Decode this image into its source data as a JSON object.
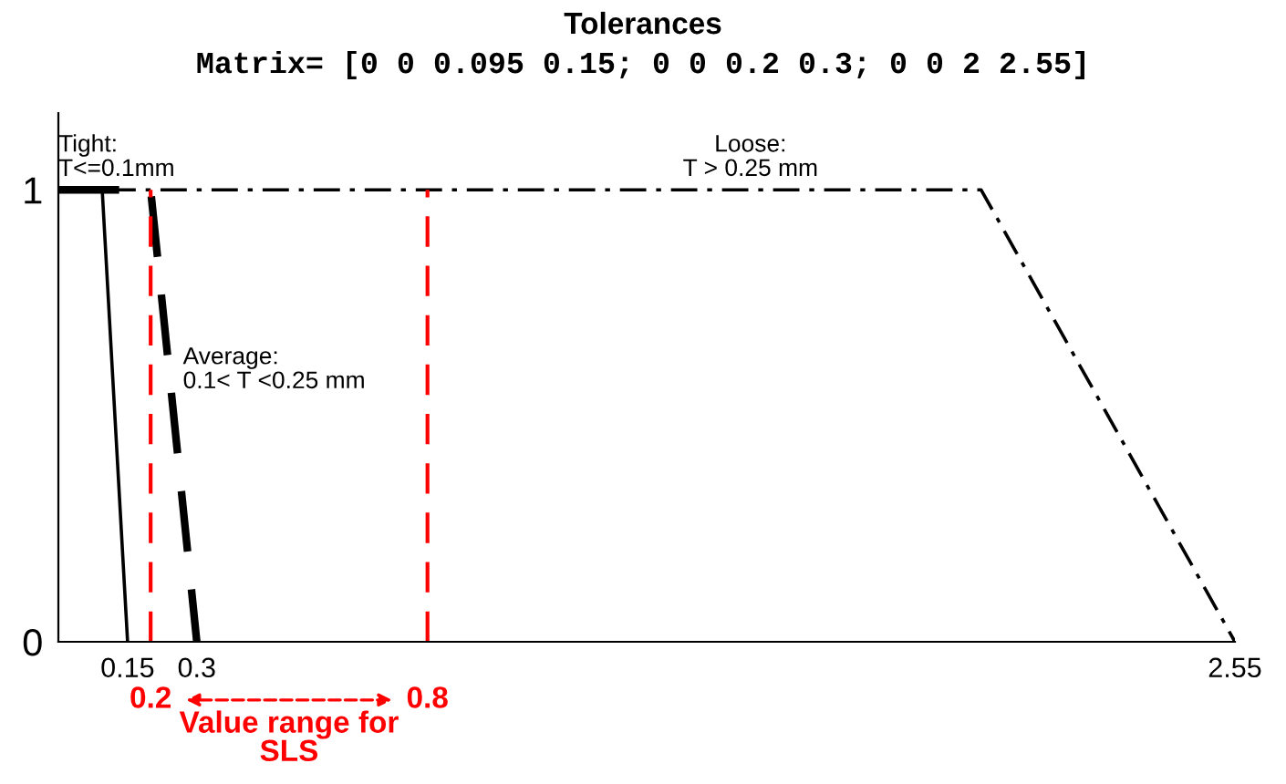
{
  "chart_data": {
    "type": "line",
    "title": "Tolerances",
    "subtitle": "Matrix= [0 0 0.095 0.15; 0 0 0.2 0.3; 0 0 2 2.55]",
    "series": [
      {
        "name": "Tight:\nT<=0.1mm",
        "color": "#000000",
        "line_style": "solid",
        "x": [
          0,
          0.095,
          0.15
        ],
        "values": [
          1,
          1,
          0
        ]
      },
      {
        "name": "Average:\n0.1< T <0.25 mm",
        "color": "#000000",
        "line_style": "dashed",
        "x": [
          0,
          0.2,
          0.3
        ],
        "values": [
          1,
          1,
          0
        ]
      },
      {
        "name": "Loose:\nT > 0.25 mm",
        "color": "#000000",
        "line_style": "dashdot",
        "x": [
          0,
          2,
          2.55
        ],
        "values": [
          1,
          1,
          0
        ]
      }
    ],
    "xlim": [
      0,
      2.55
    ],
    "xticks": [
      0.15,
      0.3,
      2.55
    ],
    "ylim": [
      0,
      1.17
    ],
    "yticks": [
      0,
      1
    ],
    "ref_lines": [
      {
        "axis": "x",
        "value": 0.2,
        "label": "0.2",
        "color": "#ff0000",
        "line_style": "dashed"
      },
      {
        "axis": "x",
        "value": 0.8,
        "label": "0.8",
        "color": "#ff0000",
        "line_style": "dashed"
      }
    ],
    "annotations": [
      "Value range for\nSLS"
    ],
    "grid": false,
    "legend": false,
    "marker": "none"
  }
}
